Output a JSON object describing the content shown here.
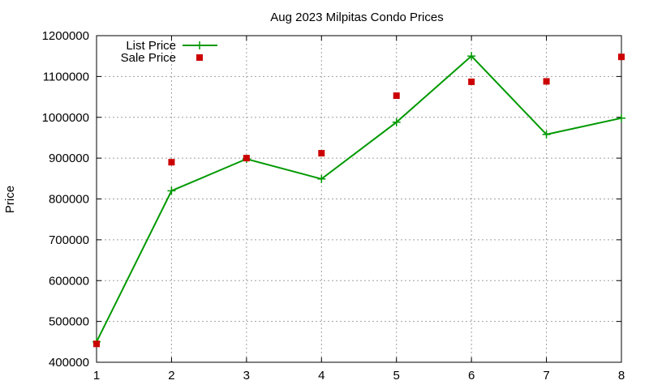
{
  "chart_data": {
    "type": "line",
    "title": "Aug 2023 Milpitas Condo Prices",
    "xlabel": "",
    "ylabel": "Price",
    "x": [
      1,
      2,
      3,
      4,
      5,
      6,
      7,
      8
    ],
    "xlim": [
      1,
      8
    ],
    "ylim": [
      400000,
      1200000
    ],
    "xticks": [
      1,
      2,
      3,
      4,
      5,
      6,
      7,
      8
    ],
    "yticks": [
      400000,
      500000,
      600000,
      700000,
      800000,
      900000,
      1000000,
      1100000,
      1200000
    ],
    "grid": true,
    "legend_position": "top-left",
    "series": [
      {
        "name": "List Price",
        "style": "line+cross",
        "color": "#009900",
        "values": [
          450000,
          820000,
          898000,
          849000,
          988000,
          1150000,
          958000,
          998000
        ]
      },
      {
        "name": "Sale Price",
        "style": "square-points",
        "color": "#cc0000",
        "values": [
          445000,
          890000,
          900000,
          912000,
          1053000,
          1087000,
          1088000,
          1148000
        ]
      }
    ]
  }
}
